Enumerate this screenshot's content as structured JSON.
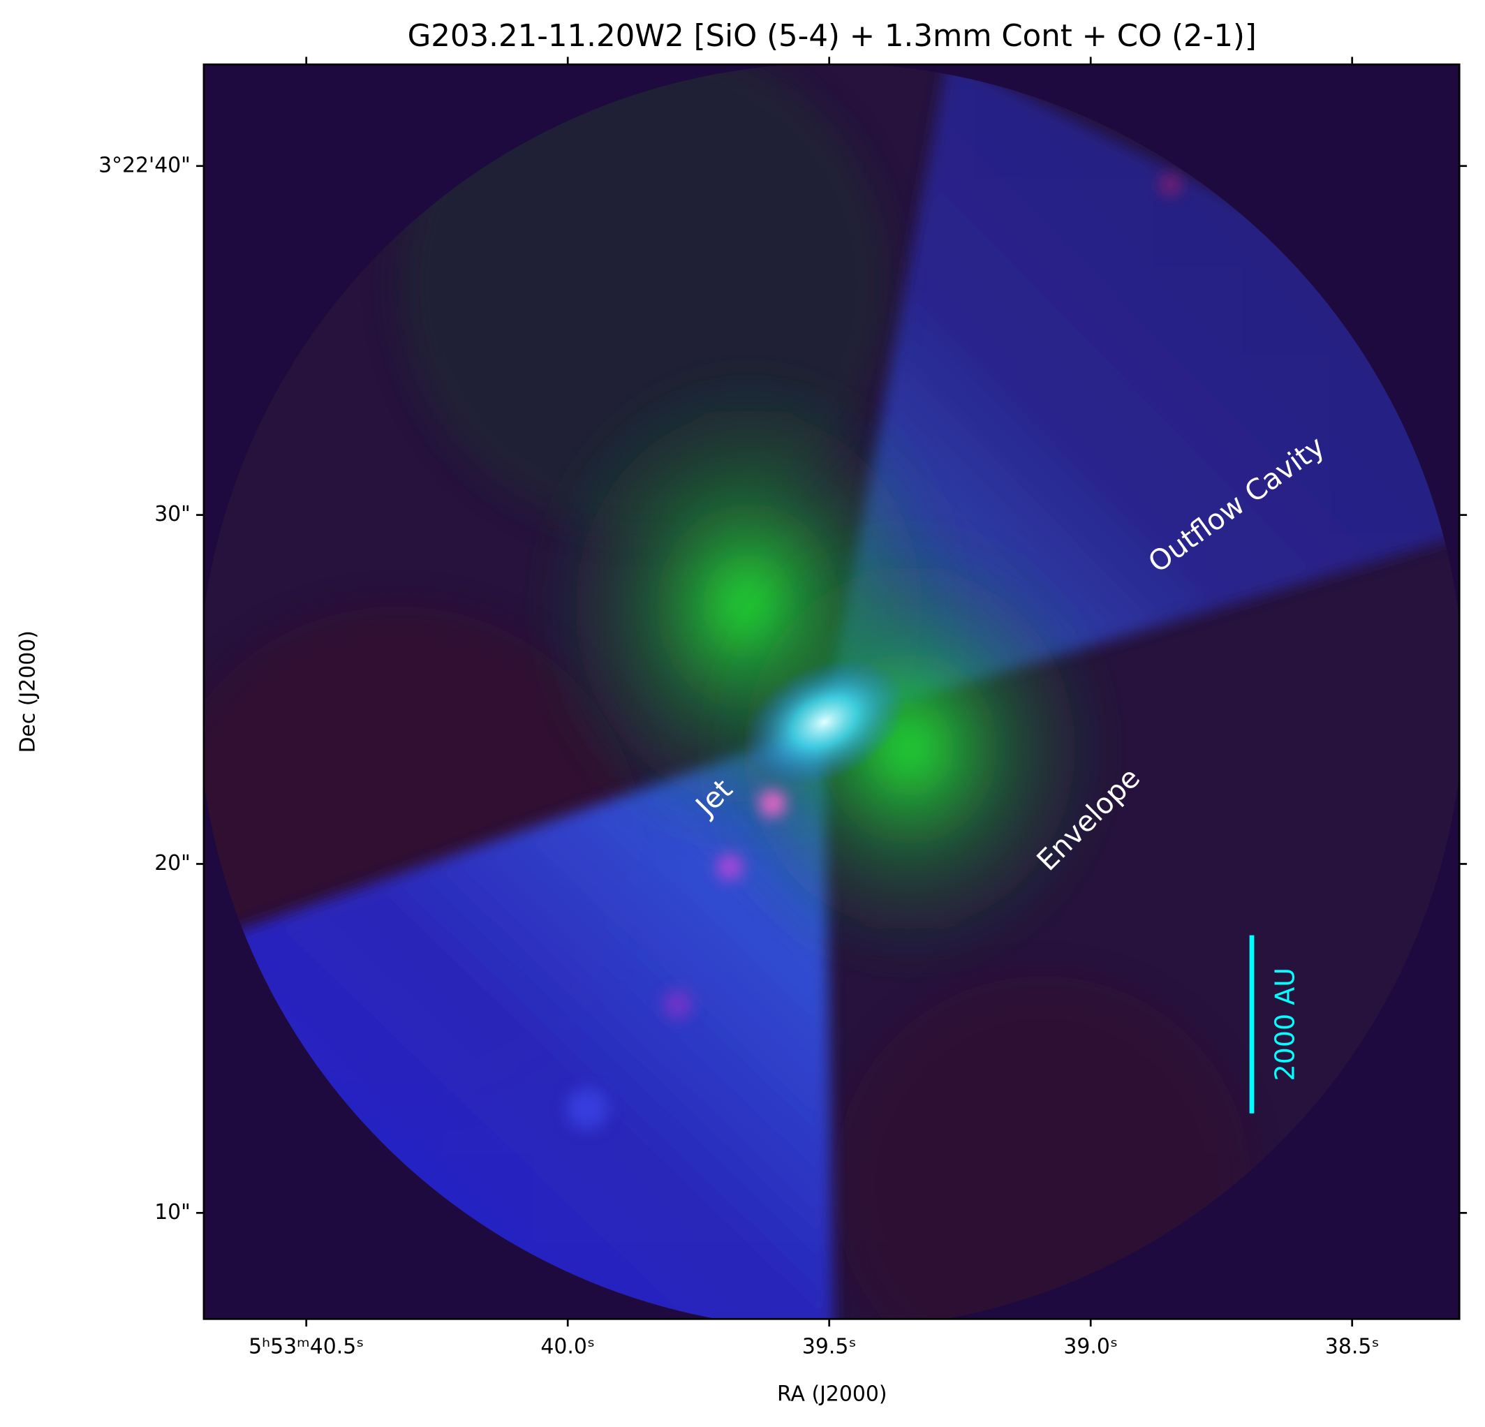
{
  "chart_data": {
    "type": "image",
    "title": "G203.21-11.20W2 [SiO (5-4) + 1.3mm Cont + CO (2-1)]",
    "xlabel": "RA (J2000)",
    "ylabel": "Dec (J2000)",
    "xlim": [
      40.696,
      38.295
    ],
    "xticks": [
      {
        "value": 40.5,
        "label": "5ʰ53ᵐ40.5ˢ"
      },
      {
        "value": 40.0,
        "label": "40.0ˢ"
      },
      {
        "value": 39.5,
        "label": "39.5ˢ"
      },
      {
        "value": 39.0,
        "label": "39.0ˢ"
      },
      {
        "value": 38.5,
        "label": "38.5ˢ"
      }
    ],
    "ylim": [
      6.96,
      42.91
    ],
    "yticks": [
      {
        "value": 10,
        "label": "10\""
      },
      {
        "value": 20,
        "label": "20\""
      },
      {
        "value": 30,
        "label": "30\""
      },
      {
        "value": 40,
        "label": "3°22'40\""
      }
    ],
    "annotations": [
      "Jet",
      "Envelope",
      "Outflow Cavity"
    ],
    "scale_bar": "2000 AU"
  }
}
